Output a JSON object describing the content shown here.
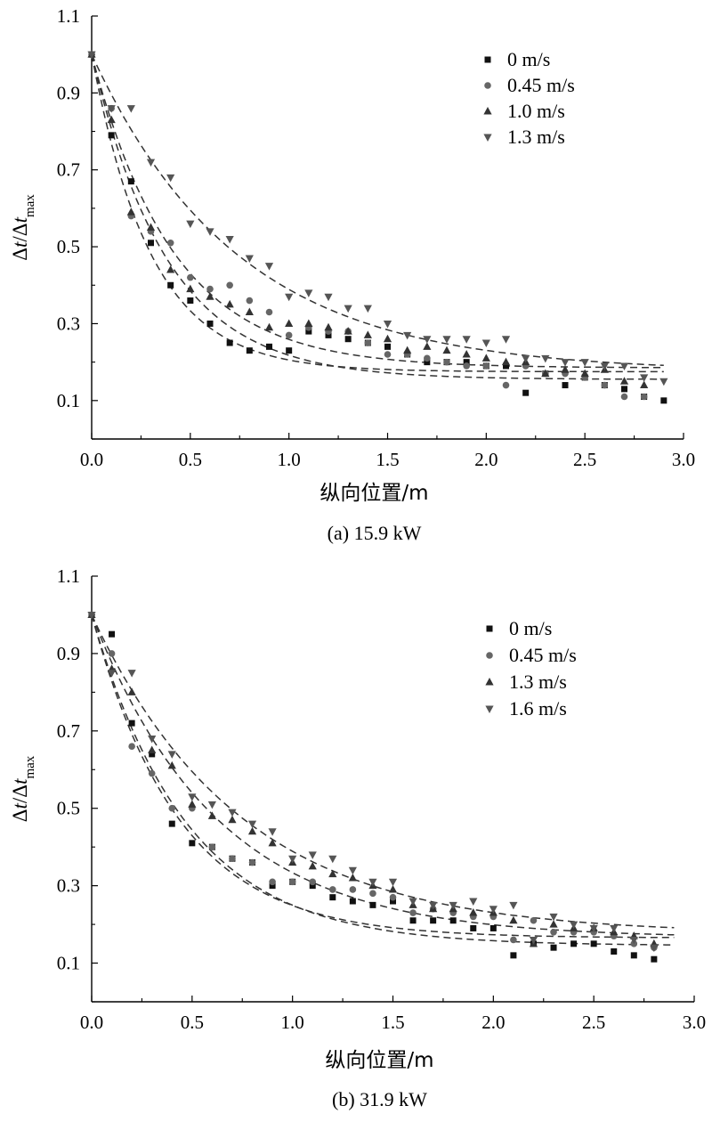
{
  "chart_data": [
    {
      "type": "scatter",
      "caption": "(a) 15.9 kW",
      "xlabel": "纵向位置/m",
      "ylabel": {
        "a": "Δ",
        "b": "t",
        "c": "/Δ",
        "d": "t",
        "sub": "max"
      },
      "xlim": [
        0,
        3.0
      ],
      "ylim": [
        0,
        1.1
      ],
      "xticks": [
        "0.0",
        "0.5",
        "1.0",
        "1.5",
        "2.0",
        "2.5",
        "3.0"
      ],
      "yticks": [
        "0.1",
        "0.3",
        "0.5",
        "0.7",
        "0.9",
        "1.1"
      ],
      "legend_position": "top-right",
      "grid": false,
      "series": [
        {
          "name": "0 m/s",
          "marker": "square",
          "color": "#111111",
          "x": [
            0.0,
            0.1,
            0.2,
            0.3,
            0.4,
            0.5,
            0.6,
            0.7,
            0.8,
            0.9,
            1.0,
            1.1,
            1.2,
            1.3,
            1.4,
            1.5,
            1.6,
            1.7,
            1.8,
            1.9,
            2.0,
            2.1,
            2.2,
            2.3,
            2.4,
            2.5,
            2.6,
            2.7,
            2.8,
            2.9
          ],
          "y": [
            1.0,
            0.79,
            0.67,
            0.51,
            0.4,
            0.36,
            0.3,
            0.25,
            0.23,
            0.24,
            0.23,
            0.28,
            0.27,
            0.26,
            0.25,
            0.24,
            0.22,
            0.2,
            0.2,
            0.2,
            0.19,
            0.19,
            0.12,
            0.17,
            0.14,
            0.16,
            0.14,
            0.13,
            0.11,
            0.1
          ],
          "fit": [
            0.175,
            0.825,
            3.3
          ]
        },
        {
          "name": "0.45 m/s",
          "marker": "circle",
          "color": "#666666",
          "x": [
            0.0,
            0.1,
            0.2,
            0.3,
            0.4,
            0.5,
            0.6,
            0.7,
            0.8,
            0.9,
            1.0,
            1.1,
            1.2,
            1.3,
            1.4,
            1.5,
            1.6,
            1.7,
            1.8,
            1.9,
            2.0,
            2.1,
            2.2,
            2.3,
            2.4,
            2.5,
            2.6,
            2.7,
            2.8
          ],
          "y": [
            1.0,
            0.86,
            0.58,
            0.54,
            0.51,
            0.42,
            0.39,
            0.4,
            0.36,
            0.33,
            0.27,
            0.29,
            0.28,
            0.28,
            0.25,
            0.22,
            0.22,
            0.21,
            0.2,
            0.19,
            0.19,
            0.14,
            0.19,
            0.17,
            0.17,
            0.16,
            0.14,
            0.11,
            0.11
          ],
          "fit": [
            0.155,
            0.845,
            2.6
          ]
        },
        {
          "name": "1.0 m/s",
          "marker": "triangle-up",
          "color": "#333333",
          "x": [
            0.0,
            0.1,
            0.2,
            0.3,
            0.4,
            0.5,
            0.6,
            0.7,
            0.8,
            0.9,
            1.0,
            1.1,
            1.2,
            1.3,
            1.4,
            1.5,
            1.6,
            1.7,
            1.8,
            1.9,
            2.0,
            2.1,
            2.2,
            2.3,
            2.4,
            2.5,
            2.6,
            2.7,
            2.8
          ],
          "y": [
            1.0,
            0.83,
            0.59,
            0.55,
            0.44,
            0.39,
            0.37,
            0.35,
            0.33,
            0.29,
            0.3,
            0.3,
            0.29,
            0.28,
            0.27,
            0.26,
            0.23,
            0.24,
            0.23,
            0.22,
            0.21,
            0.2,
            0.2,
            0.17,
            0.18,
            0.17,
            0.18,
            0.15,
            0.14
          ],
          "fit": [
            0.185,
            0.815,
            2.4
          ]
        },
        {
          "name": "1.3 m/s",
          "marker": "triangle-down",
          "color": "#555555",
          "x": [
            0.0,
            0.1,
            0.2,
            0.3,
            0.4,
            0.5,
            0.6,
            0.7,
            0.8,
            0.9,
            1.0,
            1.1,
            1.2,
            1.3,
            1.4,
            1.5,
            1.6,
            1.7,
            1.8,
            1.9,
            2.0,
            2.1,
            2.2,
            2.3,
            2.4,
            2.5,
            2.6,
            2.7,
            2.8,
            2.9
          ],
          "y": [
            1.0,
            0.86,
            0.86,
            0.72,
            0.68,
            0.56,
            0.54,
            0.52,
            0.47,
            0.45,
            0.37,
            0.38,
            0.37,
            0.34,
            0.34,
            0.3,
            0.27,
            0.26,
            0.26,
            0.26,
            0.25,
            0.26,
            0.21,
            0.21,
            0.2,
            0.2,
            0.19,
            0.19,
            0.16,
            0.15
          ],
          "fit": [
            0.175,
            0.825,
            1.35
          ]
        }
      ]
    },
    {
      "type": "scatter",
      "caption": "(b) 31.9 kW",
      "xlabel": "纵向位置/m",
      "ylabel": {
        "a": "Δ",
        "b": "t",
        "c": "/Δ",
        "d": "t",
        "sub": "max"
      },
      "xlim": [
        0,
        3.0
      ],
      "ylim": [
        0,
        1.1
      ],
      "xticks": [
        "0.0",
        "0.5",
        "1.0",
        "1.5",
        "2.0",
        "2.5",
        "3.0"
      ],
      "yticks": [
        "0.1",
        "0.3",
        "0.5",
        "0.7",
        "0.9",
        "1.1"
      ],
      "legend_position": "top-right",
      "grid": false,
      "series": [
        {
          "name": "0 m/s",
          "marker": "square",
          "color": "#111111",
          "x": [
            0.0,
            0.1,
            0.2,
            0.3,
            0.4,
            0.5,
            0.6,
            0.7,
            0.8,
            0.9,
            1.0,
            1.1,
            1.2,
            1.3,
            1.4,
            1.5,
            1.6,
            1.7,
            1.8,
            1.9,
            2.0,
            2.1,
            2.2,
            2.3,
            2.4,
            2.5,
            2.6,
            2.7,
            2.8
          ],
          "y": [
            1.0,
            0.95,
            0.72,
            0.64,
            0.46,
            0.41,
            0.4,
            0.37,
            0.36,
            0.3,
            0.31,
            0.3,
            0.27,
            0.26,
            0.25,
            0.26,
            0.21,
            0.21,
            0.21,
            0.19,
            0.19,
            0.12,
            0.15,
            0.14,
            0.15,
            0.15,
            0.13,
            0.12,
            0.11
          ],
          "fit": [
            0.145,
            0.855,
            2.1
          ]
        },
        {
          "name": "0.45 m/s",
          "marker": "circle",
          "color": "#666666",
          "x": [
            0.0,
            0.1,
            0.2,
            0.3,
            0.4,
            0.5,
            0.6,
            0.7,
            0.8,
            0.9,
            1.0,
            1.1,
            1.2,
            1.3,
            1.4,
            1.5,
            1.6,
            1.7,
            1.8,
            1.9,
            2.0,
            2.1,
            2.2,
            2.3,
            2.4,
            2.5,
            2.6,
            2.7,
            2.8
          ],
          "y": [
            1.0,
            0.9,
            0.66,
            0.59,
            0.5,
            0.5,
            0.4,
            0.37,
            0.36,
            0.31,
            0.31,
            0.31,
            0.29,
            0.29,
            0.28,
            0.27,
            0.23,
            0.24,
            0.23,
            0.22,
            0.22,
            0.16,
            0.21,
            0.18,
            0.18,
            0.18,
            0.17,
            0.15,
            0.14
          ],
          "fit": [
            0.165,
            0.835,
            2.3
          ]
        },
        {
          "name": "1.3 m/s",
          "marker": "triangle-up",
          "color": "#333333",
          "x": [
            0.0,
            0.1,
            0.2,
            0.3,
            0.4,
            0.5,
            0.6,
            0.7,
            0.8,
            0.9,
            1.0,
            1.1,
            1.2,
            1.3,
            1.4,
            1.5,
            1.6,
            1.7,
            1.8,
            1.9,
            2.0,
            2.1,
            2.2,
            2.3,
            2.4,
            2.5,
            2.6,
            2.7,
            2.8
          ],
          "y": [
            1.0,
            0.86,
            0.8,
            0.65,
            0.61,
            0.51,
            0.48,
            0.47,
            0.44,
            0.41,
            0.36,
            0.35,
            0.33,
            0.32,
            0.3,
            0.29,
            0.25,
            0.24,
            0.24,
            0.23,
            0.23,
            0.21,
            0.15,
            0.2,
            0.19,
            0.19,
            0.18,
            0.17,
            0.15
          ],
          "fit": [
            0.165,
            0.835,
            1.6
          ]
        },
        {
          "name": "1.6 m/s",
          "marker": "triangle-down",
          "color": "#555555",
          "x": [
            0.0,
            0.1,
            0.2,
            0.3,
            0.4,
            0.5,
            0.6,
            0.7,
            0.8,
            0.9,
            1.0,
            1.1,
            1.2,
            1.3,
            1.4,
            1.5,
            1.6,
            1.7,
            1.8,
            1.9,
            2.0,
            2.1,
            2.2,
            2.3,
            2.4,
            2.5,
            2.6,
            2.7,
            2.8
          ],
          "y": [
            1.0,
            0.85,
            0.85,
            0.68,
            0.64,
            0.53,
            0.51,
            0.49,
            0.46,
            0.44,
            0.37,
            0.38,
            0.37,
            0.34,
            0.31,
            0.31,
            0.26,
            0.25,
            0.25,
            0.26,
            0.24,
            0.25,
            0.16,
            0.22,
            0.2,
            0.19,
            0.19,
            0.16,
            0.14
          ],
          "fit": [
            0.175,
            0.825,
            1.35
          ]
        }
      ]
    }
  ]
}
